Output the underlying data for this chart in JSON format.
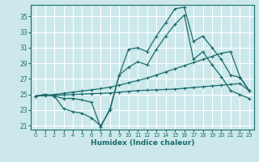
{
  "xlabel": "Humidex (Indice chaleur)",
  "background_color": "#cce8eb",
  "grid_color": "#b8d8dc",
  "line_color": "#1a6b6b",
  "xlim": [
    -0.5,
    23.5
  ],
  "ylim": [
    20.5,
    36.5
  ],
  "xticks": [
    0,
    1,
    2,
    3,
    4,
    5,
    6,
    7,
    8,
    9,
    10,
    11,
    12,
    13,
    14,
    15,
    16,
    17,
    18,
    19,
    20,
    21,
    22,
    23
  ],
  "yticks": [
    21,
    23,
    25,
    27,
    29,
    31,
    33,
    35
  ],
  "y_zigzag_top": [
    24.8,
    25.0,
    24.8,
    24.5,
    24.5,
    24.3,
    24.0,
    20.8,
    23.2,
    27.5,
    30.8,
    31.0,
    30.5,
    32.5,
    34.2,
    36.0,
    36.2,
    31.8,
    32.5,
    31.0,
    29.5,
    27.5,
    27.2,
    25.5
  ],
  "y_linear_upper": [
    24.8,
    24.9,
    25.0,
    25.15,
    25.3,
    25.45,
    25.6,
    25.75,
    25.95,
    26.2,
    26.5,
    26.8,
    27.1,
    27.5,
    27.9,
    28.3,
    28.7,
    29.1,
    29.5,
    29.9,
    30.3,
    30.5,
    27.3,
    25.5
  ],
  "y_linear_lower": [
    24.8,
    24.85,
    24.9,
    24.95,
    25.0,
    25.05,
    25.1,
    25.15,
    25.2,
    25.3,
    25.4,
    25.5,
    25.55,
    25.6,
    25.65,
    25.7,
    25.8,
    25.9,
    26.0,
    26.1,
    26.2,
    26.3,
    26.4,
    25.5
  ],
  "y_zigzag_bot": [
    24.8,
    25.0,
    24.8,
    23.2,
    22.8,
    22.6,
    22.0,
    21.0,
    23.0,
    27.5,
    28.5,
    29.2,
    28.8,
    30.8,
    32.5,
    34.0,
    35.2,
    29.5,
    30.5,
    28.8,
    27.3,
    25.5,
    25.0,
    24.5
  ]
}
